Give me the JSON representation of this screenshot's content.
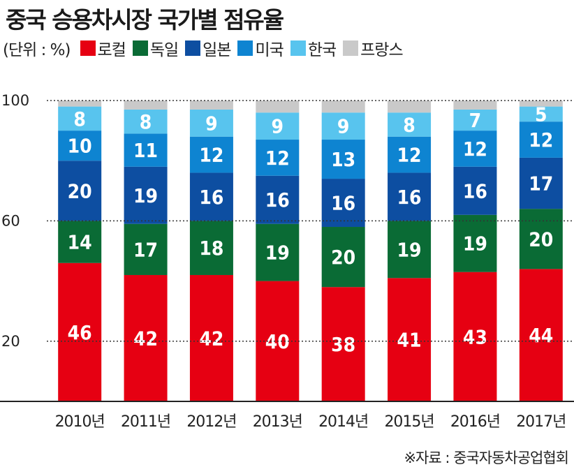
{
  "title": "중국 승용차시장 국가별 점유율",
  "unit_label": "(단위 : %)",
  "source": "※자료 : 중국자동차공업협회",
  "legend": [
    {
      "label": "로컬",
      "color": "#e60012"
    },
    {
      "label": "독일",
      "color": "#0a6b35"
    },
    {
      "label": "일본",
      "color": "#0d4ea1"
    },
    {
      "label": "미국",
      "color": "#0e84d1"
    },
    {
      "label": "한국",
      "color": "#58c4ee"
    },
    {
      "label": "프랑스",
      "color": "#c9c9c9"
    }
  ],
  "chart_data": {
    "type": "bar",
    "stacked": true,
    "categories": [
      "2010년",
      "2011년",
      "2012년",
      "2013년",
      "2014년",
      "2015년",
      "2016년",
      "2017년"
    ],
    "series": [
      {
        "name": "로컬",
        "color": "#e60012",
        "values": [
          46,
          42,
          42,
          40,
          38,
          41,
          43,
          44
        ]
      },
      {
        "name": "독일",
        "color": "#0a6b35",
        "values": [
          14,
          17,
          18,
          19,
          20,
          19,
          19,
          20
        ]
      },
      {
        "name": "일본",
        "color": "#0d4ea1",
        "values": [
          20,
          19,
          16,
          16,
          16,
          16,
          16,
          17
        ]
      },
      {
        "name": "미국",
        "color": "#0e84d1",
        "values": [
          10,
          11,
          12,
          12,
          13,
          12,
          12,
          12
        ]
      },
      {
        "name": "한국",
        "color": "#58c4ee",
        "values": [
          8,
          8,
          9,
          9,
          9,
          8,
          7,
          5
        ]
      },
      {
        "name": "프랑스",
        "color": "#c9c9c9",
        "values": [
          2,
          3,
          3,
          4,
          4,
          4,
          3,
          2
        ]
      }
    ],
    "labeled_series": [
      "로컬",
      "독일",
      "일본",
      "미국",
      "한국"
    ],
    "yticks": [
      20,
      60,
      100
    ],
    "ylim": [
      0,
      100
    ],
    "grid": true
  }
}
